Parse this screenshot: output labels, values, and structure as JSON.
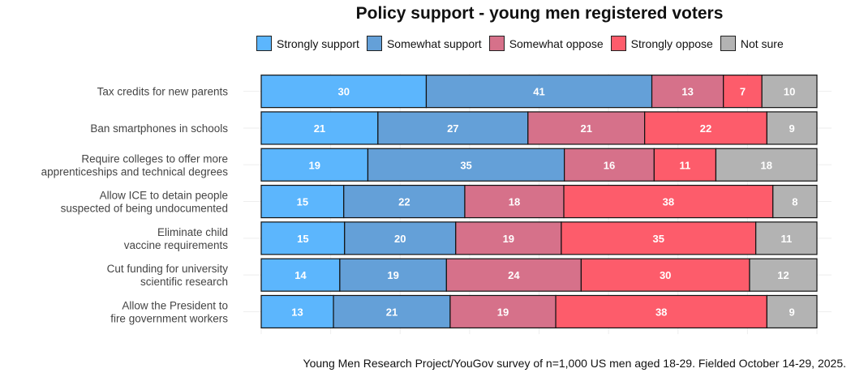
{
  "chart_data": {
    "type": "bar",
    "orientation": "horizontal-stacked",
    "title": "Policy support - young men registered voters",
    "caption": "Young Men Research Project/YouGov survey of n=1,000 US men aged 18-29. Fielded October 14-29, 2025.",
    "legend_position": "top",
    "categories": [
      [
        "Tax credits for new parents"
      ],
      [
        "Ban smartphones in schools"
      ],
      [
        "Require colleges to offer more",
        "apprenticeships and technical degrees"
      ],
      [
        "Allow ICE to detain people",
        "suspected of being undocumented"
      ],
      [
        "Eliminate child",
        "vaccine requirements"
      ],
      [
        "Cut funding for university",
        "scientific research"
      ],
      [
        "Allow the President to",
        "fire government workers"
      ]
    ],
    "series": [
      {
        "name": "Strongly support",
        "color": "#5cb6fd",
        "values": [
          30,
          21,
          19,
          15,
          15,
          14,
          13
        ]
      },
      {
        "name": "Somewhat support",
        "color": "#64a0d8",
        "values": [
          41,
          27,
          35,
          22,
          20,
          19,
          21
        ]
      },
      {
        "name": "Somewhat oppose",
        "color": "#d6718a",
        "values": [
          13,
          21,
          16,
          18,
          19,
          24,
          19
        ]
      },
      {
        "name": "Strongly oppose",
        "color": "#fd5c6b",
        "values": [
          7,
          22,
          11,
          38,
          35,
          30,
          38
        ]
      },
      {
        "name": "Not sure",
        "color": "#b3b3b3",
        "values": [
          10,
          9,
          18,
          8,
          11,
          12,
          9
        ]
      }
    ],
    "grid": true
  }
}
